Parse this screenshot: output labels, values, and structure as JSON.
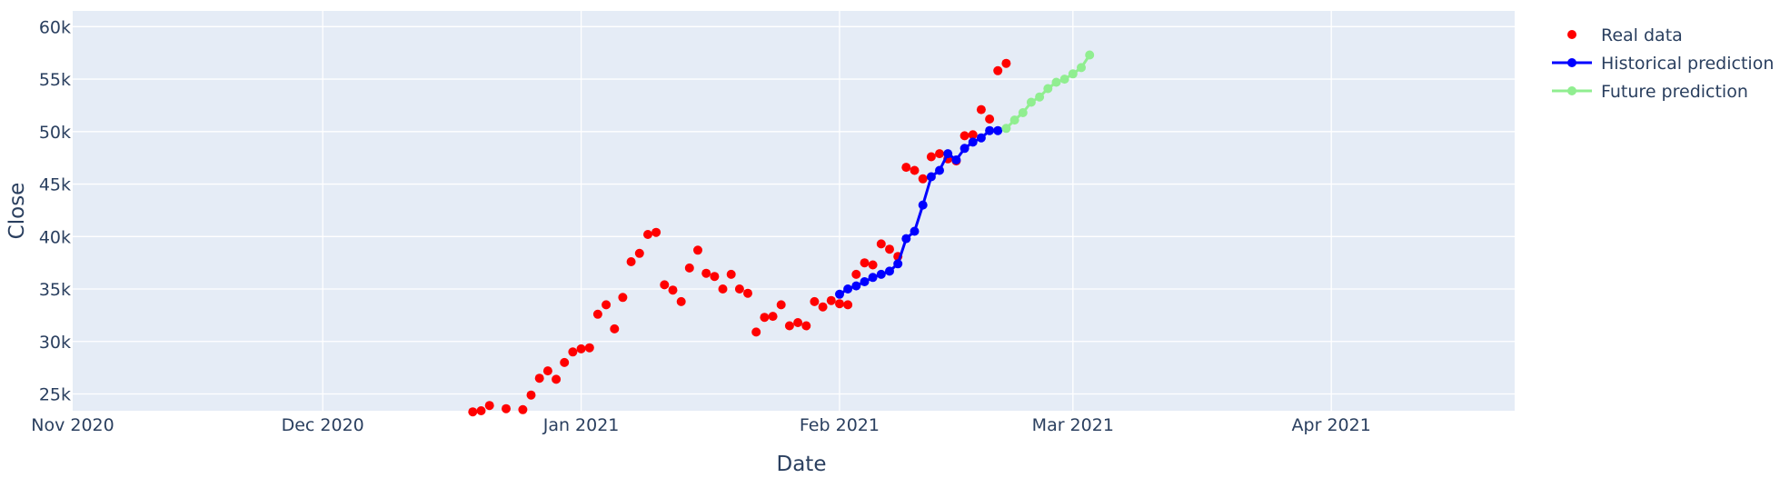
{
  "chart_data": {
    "type": "line",
    "xlabel": "Date",
    "ylabel": "Close",
    "xlim": [
      "2020-11-01",
      "2021-04-23"
    ],
    "ylim": [
      23400,
      61500
    ],
    "x_ticks": [
      {
        "date": "2020-11-01",
        "label": "Nov 2020"
      },
      {
        "date": "2020-12-01",
        "label": "Dec 2020"
      },
      {
        "date": "2021-01-01",
        "label": "Jan 2021"
      },
      {
        "date": "2021-02-01",
        "label": "Feb 2021"
      },
      {
        "date": "2021-03-01",
        "label": "Mar 2021"
      },
      {
        "date": "2021-04-01",
        "label": "Apr 2021"
      }
    ],
    "y_ticks": [
      {
        "value": 25000,
        "label": "25k"
      },
      {
        "value": 30000,
        "label": "30k"
      },
      {
        "value": 35000,
        "label": "35k"
      },
      {
        "value": 40000,
        "label": "40k"
      },
      {
        "value": 45000,
        "label": "45k"
      },
      {
        "value": 50000,
        "label": "50k"
      },
      {
        "value": 55000,
        "label": "55k"
      },
      {
        "value": 60000,
        "label": "60k"
      }
    ],
    "grid": true,
    "legend_position": "top-right",
    "series": [
      {
        "name": "Real data",
        "mode": "markers",
        "color": "#ff0000",
        "x": [
          "2020-12-19",
          "2020-12-20",
          "2020-12-21",
          "2020-12-23",
          "2020-12-25",
          "2020-12-26",
          "2020-12-27",
          "2020-12-28",
          "2020-12-29",
          "2020-12-30",
          "2020-12-31",
          "2021-01-01",
          "2021-01-02",
          "2021-01-03",
          "2021-01-04",
          "2021-01-05",
          "2021-01-06",
          "2021-01-07",
          "2021-01-08",
          "2021-01-09",
          "2021-01-10",
          "2021-01-11",
          "2021-01-12",
          "2021-01-13",
          "2021-01-14",
          "2021-01-15",
          "2021-01-16",
          "2021-01-17",
          "2021-01-18",
          "2021-01-19",
          "2021-01-20",
          "2021-01-21",
          "2021-01-22",
          "2021-01-23",
          "2021-01-24",
          "2021-01-25",
          "2021-01-26",
          "2021-01-27",
          "2021-01-28",
          "2021-01-29",
          "2021-01-30",
          "2021-01-31",
          "2021-02-01",
          "2021-02-02",
          "2021-02-03",
          "2021-02-04",
          "2021-02-05",
          "2021-02-06",
          "2021-02-07",
          "2021-02-08",
          "2021-02-09",
          "2021-02-10",
          "2021-02-11",
          "2021-02-12",
          "2021-02-13",
          "2021-02-14",
          "2021-02-15",
          "2021-02-16",
          "2021-02-17",
          "2021-02-18",
          "2021-02-19",
          "2021-02-20",
          "2021-02-21"
        ],
        "y": [
          23300,
          23400,
          23900,
          23600,
          23500,
          24900,
          26500,
          27200,
          26400,
          28000,
          29000,
          29300,
          29400,
          32600,
          33500,
          31200,
          34200,
          37600,
          38400,
          40200,
          40400,
          35400,
          34900,
          33800,
          37000,
          38700,
          36500,
          36200,
          35000,
          36400,
          35000,
          34600,
          30900,
          32300,
          32400,
          33500,
          31500,
          31800,
          31500,
          33800,
          33300,
          33900,
          33600,
          33500,
          36400,
          37500,
          37300,
          39300,
          38800,
          38100,
          46600,
          46300,
          45500,
          47600,
          47900,
          47400,
          47200,
          49600,
          49700,
          52100,
          51200,
          55800,
          56500
        ]
      },
      {
        "name": "Historical prediction",
        "mode": "lines+markers",
        "color": "#0000ff",
        "x": [
          "2021-02-01",
          "2021-02-02",
          "2021-02-03",
          "2021-02-04",
          "2021-02-05",
          "2021-02-06",
          "2021-02-07",
          "2021-02-08",
          "2021-02-09",
          "2021-02-10",
          "2021-02-11",
          "2021-02-12",
          "2021-02-13",
          "2021-02-14",
          "2021-02-15",
          "2021-02-16",
          "2021-02-17",
          "2021-02-18",
          "2021-02-19",
          "2021-02-20"
        ],
        "y": [
          34500,
          35000,
          35300,
          35700,
          36100,
          36400,
          36700,
          37400,
          39800,
          40500,
          43000,
          45700,
          46300,
          47900,
          47300,
          48400,
          49000,
          49400,
          50100,
          50100
        ]
      },
      {
        "name": "Future prediction",
        "mode": "lines+markers",
        "color": "#90ee90",
        "x": [
          "2021-02-21",
          "2021-02-22",
          "2021-02-23",
          "2021-02-24",
          "2021-02-25",
          "2021-02-26",
          "2021-02-27",
          "2021-02-28",
          "2021-03-01",
          "2021-03-02",
          "2021-03-03"
        ],
        "y": [
          50300,
          51100,
          51800,
          52800,
          53300,
          54100,
          54700,
          55000,
          55500,
          56100,
          57300
        ]
      }
    ]
  }
}
